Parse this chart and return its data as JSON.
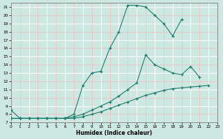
{
  "xlabel": "Humidex (Indice chaleur)",
  "background_color": "#cce8e0",
  "grid_color_white": "#ffffff",
  "grid_color_pink": "#e8c8c8",
  "line_color": "#1a7a6e",
  "xlim": [
    0,
    23
  ],
  "ylim": [
    7,
    21.5
  ],
  "xticks": [
    0,
    1,
    2,
    3,
    4,
    5,
    6,
    7,
    8,
    9,
    10,
    11,
    12,
    13,
    14,
    15,
    16,
    17,
    18,
    19,
    20,
    21,
    22,
    23
  ],
  "yticks": [
    7,
    8,
    9,
    10,
    11,
    12,
    13,
    14,
    15,
    16,
    17,
    18,
    19,
    20,
    21
  ],
  "curve1_x": [
    0,
    1,
    2,
    3,
    4,
    5,
    6,
    7,
    8,
    9,
    10,
    11,
    12,
    13,
    14,
    15,
    16,
    17,
    18,
    19
  ],
  "curve1_y": [
    8.5,
    7.5,
    7.5,
    7.5,
    7.5,
    7.5,
    7.5,
    8.0,
    11.5,
    13.0,
    13.2,
    16.0,
    18.0,
    21.2,
    21.2,
    21.0,
    20.0,
    19.0,
    17.5,
    19.5
  ],
  "curve2_x": [
    0,
    1,
    2,
    3,
    4,
    5,
    6,
    7,
    8,
    9,
    10,
    11,
    12,
    13,
    14,
    15,
    16,
    17,
    18,
    19,
    20,
    21
  ],
  "curve2_y": [
    7.5,
    7.5,
    7.5,
    7.5,
    7.5,
    7.5,
    7.5,
    7.7,
    8.0,
    8.5,
    9.0,
    9.5,
    10.2,
    11.0,
    11.8,
    15.2,
    14.0,
    13.5,
    13.0,
    12.8,
    13.8,
    12.5
  ],
  "curve3_x": [
    0,
    1,
    2,
    3,
    4,
    5,
    6,
    7,
    8,
    9,
    10,
    11,
    12,
    13,
    14,
    15,
    16,
    17,
    18,
    19,
    20,
    21,
    22
  ],
  "curve3_y": [
    7.5,
    7.5,
    7.5,
    7.5,
    7.5,
    7.5,
    7.5,
    7.5,
    7.7,
    8.0,
    8.3,
    8.7,
    9.1,
    9.5,
    9.9,
    10.3,
    10.6,
    10.9,
    11.1,
    11.2,
    11.3,
    11.4,
    11.5
  ]
}
